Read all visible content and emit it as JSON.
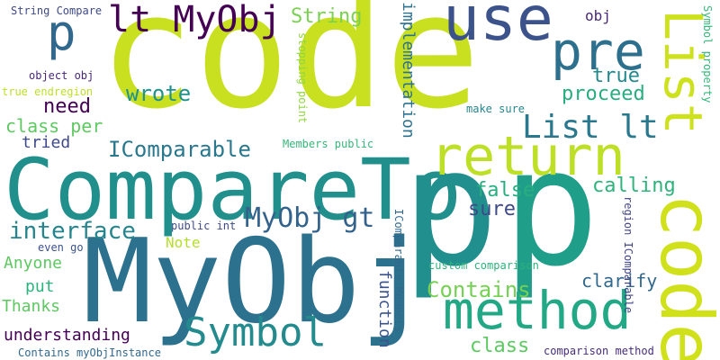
{
  "words": [
    {
      "text": "code",
      "color": "#c8e020"
    },
    {
      "text": "CompareTo",
      "color": "#21908c"
    },
    {
      "text": "MyObj",
      "color": "#2c728e"
    },
    {
      "text": "p",
      "color": "#218f8d"
    },
    {
      "text": "p",
      "color": "#1f9e89"
    },
    {
      "text": "code",
      "color": "#d0e11c"
    },
    {
      "text": "use",
      "color": "#3b528b"
    },
    {
      "text": "return",
      "color": "#bddf26"
    },
    {
      "text": "method",
      "color": "#22a884"
    },
    {
      "text": "pre",
      "color": "#2d708e"
    },
    {
      "text": "List",
      "color": "#cde11d"
    },
    {
      "text": "lt MyObj",
      "color": "#440154"
    },
    {
      "text": "p",
      "color": "#31688e"
    },
    {
      "text": "List lt",
      "color": "#2a788e"
    },
    {
      "text": "Symbol",
      "color": "#238a8d"
    },
    {
      "text": "MyObj gt",
      "color": "#33638d"
    },
    {
      "text": "interface",
      "color": "#25858e"
    },
    {
      "text": "IComparable",
      "color": "#2a788e"
    },
    {
      "text": "wrote",
      "color": "#20928c"
    },
    {
      "text": "Contains",
      "color": "#75d054"
    },
    {
      "text": "true",
      "color": "#23898e"
    },
    {
      "text": "proceed",
      "color": "#27ad81"
    },
    {
      "text": "String",
      "color": "#7ad151"
    },
    {
      "text": "implementation",
      "color": "#2c728e"
    },
    {
      "text": "false",
      "color": "#28ae80"
    },
    {
      "text": "sure",
      "color": "#3e4a89"
    },
    {
      "text": "calling",
      "color": "#2eb37c"
    },
    {
      "text": "class",
      "color": "#5ec962"
    },
    {
      "text": "clarify",
      "color": "#31688e"
    },
    {
      "text": "need",
      "color": "#440154"
    },
    {
      "text": "class per",
      "color": "#5ec962"
    },
    {
      "text": "tried",
      "color": "#3e4a89"
    },
    {
      "text": "Anyone",
      "color": "#5ec962"
    },
    {
      "text": "put",
      "color": "#2eb37c"
    },
    {
      "text": "Thanks",
      "color": "#5ec962"
    },
    {
      "text": "understanding",
      "color": "#440154"
    },
    {
      "text": "Note",
      "color": "#b5de2b"
    },
    {
      "text": "function",
      "color": "#3b528b"
    },
    {
      "text": "obj",
      "color": "#482878"
    },
    {
      "text": "Symbol property",
      "color": "#35b779"
    },
    {
      "text": "stopping point",
      "color": "#90d743"
    },
    {
      "text": "IComparable Members",
      "color": "#31688e"
    },
    {
      "text": "region IComparable",
      "color": "#414487"
    },
    {
      "text": "custom comparison",
      "color": "#2eb37c"
    },
    {
      "text": "comparison method",
      "color": "#472d7b"
    },
    {
      "text": "make sure",
      "color": "#25858e"
    },
    {
      "text": "Members public",
      "color": "#35b779"
    },
    {
      "text": "public int",
      "color": "#3e4a89"
    },
    {
      "text": "even go",
      "color": "#3b528b"
    },
    {
      "text": "Contains myObjInstance",
      "color": "#31688e"
    },
    {
      "text": "String Compare",
      "color": "#3e4a89"
    },
    {
      "text": "object obj",
      "color": "#482878"
    },
    {
      "text": "true endregion",
      "color": "#bddf26"
    }
  ]
}
